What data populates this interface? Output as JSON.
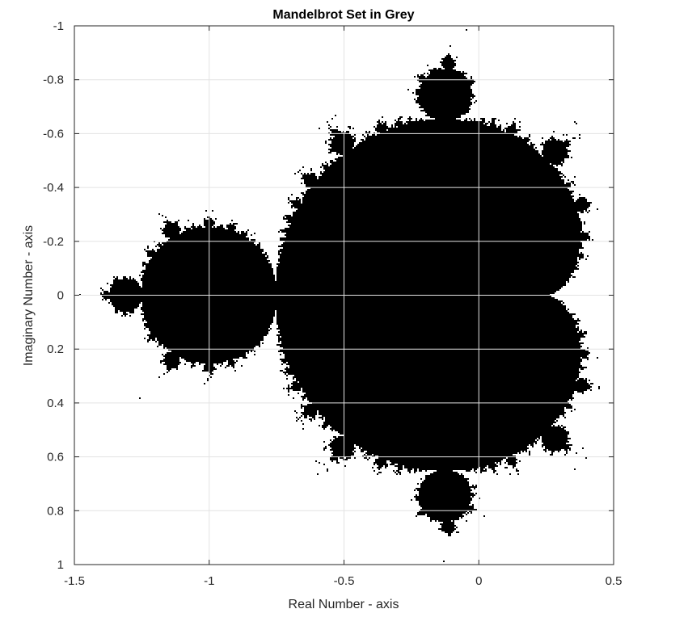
{
  "chart_data": {
    "type": "heatmap",
    "title": "Mandelbrot Set in Grey",
    "xlabel": "Real Number - axis",
    "ylabel": "Imaginary Number - axis",
    "xlim": [
      -1.5,
      0.5
    ],
    "ylim": [
      -1,
      1
    ],
    "y_direction": "reversed",
    "xticks": [
      -1.5,
      -1,
      -0.5,
      0,
      0.5
    ],
    "xtick_labels": [
      "-1.5",
      "-1",
      "-0.5",
      "0",
      "0.5"
    ],
    "yticks": [
      -1,
      -0.8,
      -0.6,
      -0.4,
      -0.2,
      0,
      0.2,
      0.4,
      0.6,
      0.8,
      1
    ],
    "ytick_labels": [
      "-1",
      "-0.8",
      "-0.6",
      "-0.4",
      "-0.2",
      "0",
      "0.2",
      "0.4",
      "0.6",
      "0.8",
      "1"
    ],
    "grid": true,
    "box": true,
    "colormap": "grey",
    "set_color": "#000000",
    "background_color": "#ffffff",
    "iterations": 60
  },
  "colors": {
    "grid": "#e3e3e3",
    "axis": "#262626",
    "fill": "#000000"
  }
}
